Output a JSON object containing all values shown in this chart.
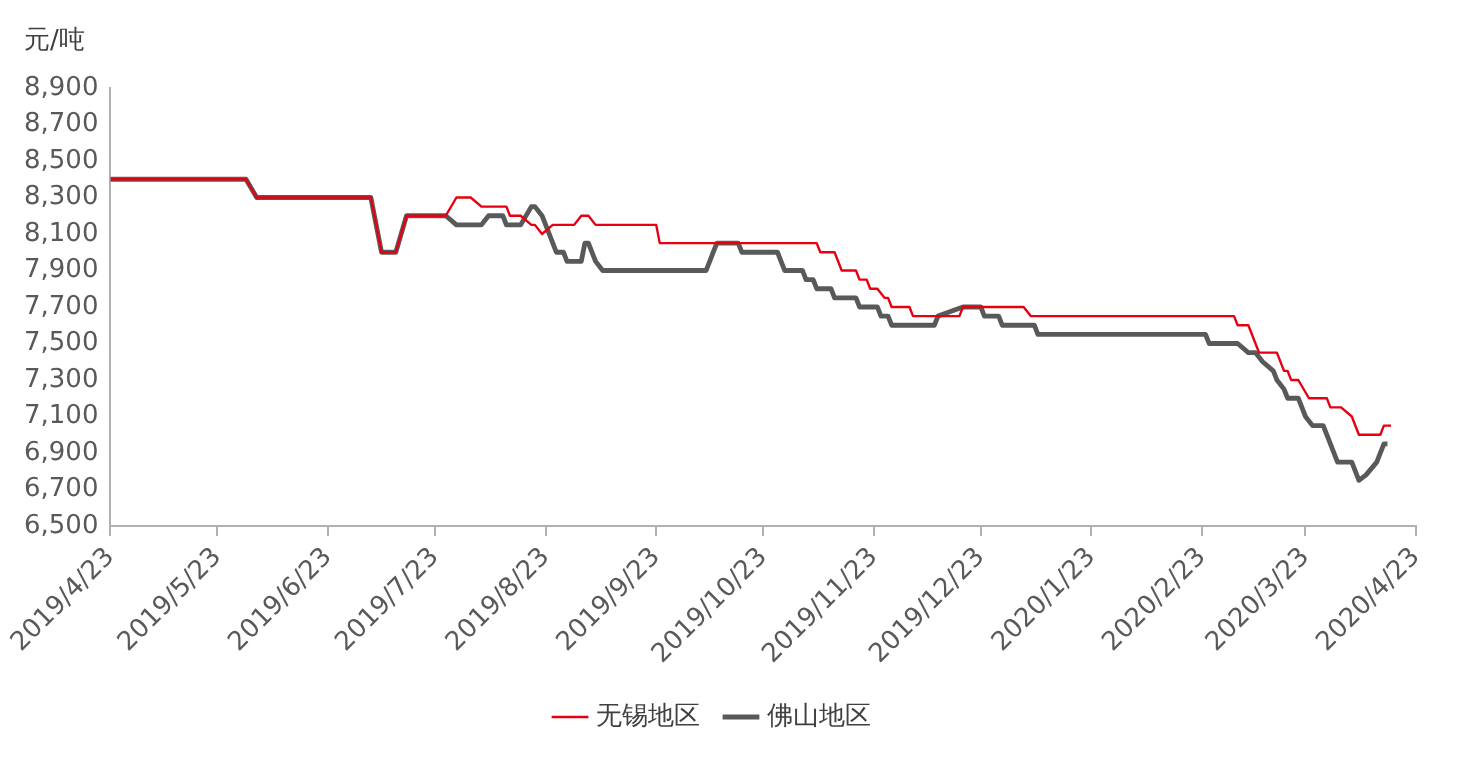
{
  "chart_data": {
    "type": "line",
    "ylabel": "元/吨",
    "legend": "bottom",
    "grid": false,
    "marker": "none",
    "line_style": "solid",
    "xlim": [
      "2019-04-23",
      "2020-04-23"
    ],
    "xticks": [
      {
        "value": "2019-04-23",
        "label": "2019/4/23"
      },
      {
        "value": "2019-05-23",
        "label": "2019/5/23"
      },
      {
        "value": "2019-06-23",
        "label": "2019/6/23"
      },
      {
        "value": "2019-07-23",
        "label": "2019/7/23"
      },
      {
        "value": "2019-08-23",
        "label": "2019/8/23"
      },
      {
        "value": "2019-09-23",
        "label": "2019/9/23"
      },
      {
        "value": "2019-10-23",
        "label": "2019/10/23"
      },
      {
        "value": "2019-11-23",
        "label": "2019/11/23"
      },
      {
        "value": "2019-12-23",
        "label": "2019/12/23"
      },
      {
        "value": "2020-01-23",
        "label": "2020/1/23"
      },
      {
        "value": "2020-02-23",
        "label": "2020/2/23"
      },
      {
        "value": "2020-03-23",
        "label": "2020/3/23"
      },
      {
        "value": "2020-04-23",
        "label": "2020/4/23"
      }
    ],
    "ylim": [
      6500,
      8900
    ],
    "yticks": [
      {
        "value": 6500,
        "label": "6,500"
      },
      {
        "value": 6700,
        "label": "6,700"
      },
      {
        "value": 6900,
        "label": "6,900"
      },
      {
        "value": 7100,
        "label": "7,100"
      },
      {
        "value": 7300,
        "label": "7,300"
      },
      {
        "value": 7500,
        "label": "7,500"
      },
      {
        "value": 7700,
        "label": "7,700"
      },
      {
        "value": 7900,
        "label": "7,900"
      },
      {
        "value": 8100,
        "label": "8,100"
      },
      {
        "value": 8300,
        "label": "8,300"
      },
      {
        "value": 8500,
        "label": "8,500"
      },
      {
        "value": 8700,
        "label": "8,700"
      },
      {
        "value": 8900,
        "label": "8,900"
      }
    ],
    "series": [
      {
        "name": "无锡地区",
        "color": "#e60012",
        "x": [
          "2019-04-23",
          "2019-05-31",
          "2019-06-03",
          "2019-07-05",
          "2019-07-08",
          "2019-07-12",
          "2019-07-15",
          "2019-07-26",
          "2019-07-29",
          "2019-08-02",
          "2019-08-05",
          "2019-08-12",
          "2019-08-13",
          "2019-08-16",
          "2019-08-19",
          "2019-08-20",
          "2019-08-22",
          "2019-08-25",
          "2019-08-31",
          "2019-09-02",
          "2019-09-04",
          "2019-09-06",
          "2019-09-23",
          "2019-09-24",
          "2019-11-07",
          "2019-11-08",
          "2019-11-12",
          "2019-11-14",
          "2019-11-18",
          "2019-11-19",
          "2019-11-21",
          "2019-11-22",
          "2019-11-24",
          "2019-11-26",
          "2019-11-27",
          "2019-11-28",
          "2019-12-03",
          "2019-12-04",
          "2019-12-17",
          "2019-12-18",
          "2020-01-04",
          "2020-01-06",
          "2020-03-03",
          "2020-03-04",
          "2020-03-07",
          "2020-03-10",
          "2020-03-15",
          "2020-03-17",
          "2020-03-18",
          "2020-03-19",
          "2020-03-21",
          "2020-03-24",
          "2020-03-29",
          "2020-03-30",
          "2020-04-02",
          "2020-04-05",
          "2020-04-07",
          "2020-04-13",
          "2020-04-14",
          "2020-04-16"
        ],
        "values": [
          8400,
          8400,
          8300,
          8300,
          8000,
          8000,
          8200,
          8200,
          8300,
          8300,
          8250,
          8250,
          8200,
          8200,
          8150,
          8150,
          8100,
          8150,
          8150,
          8200,
          8200,
          8150,
          8150,
          8050,
          8050,
          8000,
          8000,
          7900,
          7900,
          7850,
          7850,
          7800,
          7800,
          7750,
          7750,
          7700,
          7700,
          7650,
          7650,
          7700,
          7700,
          7650,
          7650,
          7600,
          7600,
          7450,
          7450,
          7350,
          7350,
          7300,
          7300,
          7200,
          7200,
          7150,
          7150,
          7100,
          7000,
          7000,
          7050,
          7050
        ]
      },
      {
        "name": "佛山地区",
        "color": "#595959",
        "x": [
          "2019-04-23",
          "2019-05-31",
          "2019-06-03",
          "2019-07-05",
          "2019-07-08",
          "2019-07-12",
          "2019-07-15",
          "2019-07-26",
          "2019-07-29",
          "2019-08-05",
          "2019-08-07",
          "2019-08-11",
          "2019-08-12",
          "2019-08-16",
          "2019-08-19",
          "2019-08-20",
          "2019-08-22",
          "2019-08-24",
          "2019-08-26",
          "2019-08-28",
          "2019-08-29",
          "2019-09-02",
          "2019-09-03",
          "2019-09-04",
          "2019-09-06",
          "2019-09-08",
          "2019-10-07",
          "2019-10-09",
          "2019-10-10",
          "2019-10-16",
          "2019-10-17",
          "2019-10-27",
          "2019-10-29",
          "2019-11-03",
          "2019-11-04",
          "2019-11-06",
          "2019-11-07",
          "2019-11-11",
          "2019-11-12",
          "2019-11-18",
          "2019-11-19",
          "2019-11-24",
          "2019-11-25",
          "2019-11-27",
          "2019-11-28",
          "2019-12-10",
          "2019-12-11",
          "2019-12-18",
          "2019-12-23",
          "2019-12-24",
          "2019-12-28",
          "2019-12-29",
          "2020-01-07",
          "2020-01-08",
          "2020-02-24",
          "2020-02-25",
          "2020-03-04",
          "2020-03-07",
          "2020-03-09",
          "2020-03-11",
          "2020-03-14",
          "2020-03-15",
          "2020-03-17",
          "2020-03-18",
          "2020-03-21",
          "2020-03-23",
          "2020-03-25",
          "2020-03-28",
          "2020-03-30",
          "2020-04-01",
          "2020-04-05",
          "2020-04-07",
          "2020-04-09",
          "2020-04-12",
          "2020-04-14",
          "2020-04-15"
        ],
        "values": [
          8400,
          8400,
          8300,
          8300,
          8000,
          8000,
          8200,
          8200,
          8150,
          8150,
          8200,
          8200,
          8150,
          8150,
          8250,
          8250,
          8200,
          8100,
          8000,
          8000,
          7950,
          7950,
          8050,
          8050,
          7950,
          7900,
          7900,
          8000,
          8050,
          8050,
          8000,
          8000,
          7900,
          7900,
          7850,
          7850,
          7800,
          7800,
          7750,
          7750,
          7700,
          7700,
          7650,
          7650,
          7600,
          7600,
          7650,
          7700,
          7700,
          7650,
          7650,
          7600,
          7600,
          7550,
          7550,
          7500,
          7500,
          7450,
          7450,
          7400,
          7350,
          7300,
          7250,
          7200,
          7200,
          7100,
          7050,
          7050,
          6950,
          6850,
          6850,
          6750,
          6780,
          6850,
          6950,
          6950
        ]
      }
    ]
  }
}
